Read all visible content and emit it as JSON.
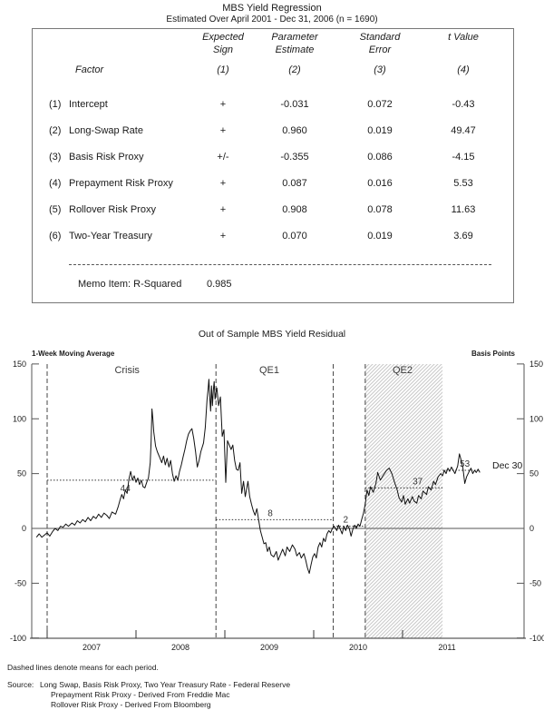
{
  "regression_table": {
    "title": "MBS Yield Regression",
    "subtitle": "Estimated Over April 2001 - Dec 31, 2006 (n = 1690)",
    "factor_header": "Factor",
    "col_headers": [
      {
        "line1": "Expected",
        "line2": "Sign",
        "num": "(1)"
      },
      {
        "line1": "Parameter",
        "line2": "Estimate",
        "num": "(2)"
      },
      {
        "line1": "Standard",
        "line2": "Error",
        "num": "(3)"
      },
      {
        "line1": "t Value",
        "line2": "",
        "num": "(4)"
      }
    ],
    "rows": [
      {
        "num": "(1)",
        "factor": "Intercept",
        "sign": "+",
        "estimate": "-0.031",
        "std_error": "0.072",
        "t_value": "-0.43"
      },
      {
        "num": "(2)",
        "factor": "Long-Swap Rate",
        "sign": "+",
        "estimate": "0.960",
        "std_error": "0.019",
        "t_value": "49.47"
      },
      {
        "num": "(3)",
        "factor": "Basis Risk Proxy",
        "sign": "+/-",
        "estimate": "-0.355",
        "std_error": "0.086",
        "t_value": "-4.15"
      },
      {
        "num": "(4)",
        "factor": "Prepayment Risk Proxy",
        "sign": "+",
        "estimate": "0.087",
        "std_error": "0.016",
        "t_value": "5.53"
      },
      {
        "num": "(5)",
        "factor": "Rollover Risk Proxy",
        "sign": "+",
        "estimate": "0.908",
        "std_error": "0.078",
        "t_value": "11.63"
      },
      {
        "num": "(6)",
        "factor": "Two-Year Treasury",
        "sign": "+",
        "estimate": "0.070",
        "std_error": "0.019",
        "t_value": "3.69"
      }
    ],
    "memo_label": "Memo Item: R-Squared",
    "memo_value": "0.985"
  },
  "chart_data": {
    "type": "line",
    "title": "Out of Sample MBS Yield Residual",
    "left_axis_label": "1-Week Moving Average",
    "right_axis_label": "Basis Points",
    "ylabel_units": "basis points",
    "ylim": [
      -100,
      150
    ],
    "y_ticks": [
      150,
      100,
      50,
      0,
      -50,
      -100
    ],
    "x_tick_years": [
      2007,
      2008,
      2009,
      2010,
      2011
    ],
    "x_tick_labels": [
      "2007",
      "2008",
      "2009",
      "2010",
      "2011"
    ],
    "xlim_years": [
      2006.83,
      2012.37
    ],
    "grid": false,
    "zero_line": 0,
    "dividers": [
      2007.0,
      2008.9,
      2010.22,
      2010.58
    ],
    "periods": [
      {
        "name": "crisis",
        "label": "Crisis",
        "label_year": 2007.9,
        "start": 2007.0,
        "end": 2008.9,
        "mean": 44,
        "mean_label": "44",
        "mean_label_year": 2007.88,
        "mean_label_pos": "below",
        "hatched": false
      },
      {
        "name": "qe1",
        "label": "QE1",
        "label_year": 2009.5,
        "start": 2008.9,
        "end": 2010.22,
        "mean": 8,
        "mean_label": "8",
        "mean_label_year": 2009.51,
        "mean_label_pos": "above",
        "hatched": false
      },
      {
        "name": "inter-qe",
        "label": "",
        "label_year": null,
        "start": 2010.22,
        "end": 2010.58,
        "mean": 2,
        "mean_label": "2",
        "mean_label_year": 2010.36,
        "mean_label_pos": "above",
        "hatched": false
      },
      {
        "name": "qe2",
        "label": "QE2",
        "label_year": 2011.0,
        "start": 2010.58,
        "end": 2011.45,
        "mean": 37,
        "mean_label": "37",
        "mean_label_year": 2011.17,
        "mean_label_pos": "above",
        "hatched": true
      },
      {
        "name": "post-qe2",
        "label": "",
        "label_year": null,
        "start": 2011.45,
        "end": 2011.87,
        "mean": 53,
        "mean_label": "53",
        "mean_label_year": 2011.7,
        "mean_label_pos": "above",
        "hatched": false
      }
    ],
    "end_label": {
      "text": "Dec 30",
      "year": 2012.0,
      "value": 53
    },
    "series": [
      {
        "name": "MBS yield residual (1-week moving average)",
        "points": [
          [
            2006.88,
            -8
          ],
          [
            2006.91,
            -5
          ],
          [
            2006.94,
            -8
          ],
          [
            2006.97,
            -6
          ],
          [
            2007.0,
            -4
          ],
          [
            2007.03,
            -7
          ],
          [
            2007.06,
            -3
          ],
          [
            2007.09,
            0
          ],
          [
            2007.12,
            -2
          ],
          [
            2007.15,
            2
          ],
          [
            2007.18,
            1
          ],
          [
            2007.21,
            4
          ],
          [
            2007.24,
            2
          ],
          [
            2007.28,
            5
          ],
          [
            2007.31,
            3
          ],
          [
            2007.34,
            7
          ],
          [
            2007.37,
            5
          ],
          [
            2007.4,
            8
          ],
          [
            2007.43,
            6
          ],
          [
            2007.46,
            10
          ],
          [
            2007.49,
            7
          ],
          [
            2007.52,
            11
          ],
          [
            2007.55,
            9
          ],
          [
            2007.58,
            13
          ],
          [
            2007.61,
            10
          ],
          [
            2007.64,
            14
          ],
          [
            2007.67,
            12
          ],
          [
            2007.7,
            9
          ],
          [
            2007.73,
            15
          ],
          [
            2007.77,
            13
          ],
          [
            2007.8,
            20
          ],
          [
            2007.82,
            26
          ],
          [
            2007.84,
            31
          ],
          [
            2007.86,
            27
          ],
          [
            2007.88,
            35
          ],
          [
            2007.9,
            32
          ],
          [
            2007.92,
            45
          ],
          [
            2007.94,
            52
          ],
          [
            2007.96,
            44
          ],
          [
            2007.98,
            48
          ],
          [
            2008.0,
            42
          ],
          [
            2008.02,
            46
          ],
          [
            2008.04,
            40
          ],
          [
            2008.06,
            44
          ],
          [
            2008.08,
            38
          ],
          [
            2008.1,
            37
          ],
          [
            2008.12,
            42
          ],
          [
            2008.14,
            46
          ],
          [
            2008.16,
            60
          ],
          [
            2008.17,
            80
          ],
          [
            2008.18,
            109
          ],
          [
            2008.19,
            100
          ],
          [
            2008.2,
            88
          ],
          [
            2008.22,
            75
          ],
          [
            2008.24,
            70
          ],
          [
            2008.27,
            64
          ],
          [
            2008.29,
            60
          ],
          [
            2008.31,
            66
          ],
          [
            2008.33,
            58
          ],
          [
            2008.35,
            64
          ],
          [
            2008.37,
            56
          ],
          [
            2008.39,
            62
          ],
          [
            2008.41,
            50
          ],
          [
            2008.43,
            43
          ],
          [
            2008.45,
            48
          ],
          [
            2008.47,
            44
          ],
          [
            2008.49,
            52
          ],
          [
            2008.51,
            58
          ],
          [
            2008.53,
            65
          ],
          [
            2008.55,
            72
          ],
          [
            2008.57,
            80
          ],
          [
            2008.59,
            86
          ],
          [
            2008.61,
            89
          ],
          [
            2008.63,
            91
          ],
          [
            2008.65,
            82
          ],
          [
            2008.67,
            70
          ],
          [
            2008.69,
            56
          ],
          [
            2008.71,
            62
          ],
          [
            2008.73,
            70
          ],
          [
            2008.76,
            78
          ],
          [
            2008.78,
            92
          ],
          [
            2008.79,
            105
          ],
          [
            2008.8,
            118
          ],
          [
            2008.81,
            126
          ],
          [
            2008.82,
            136
          ],
          [
            2008.83,
            120
          ],
          [
            2008.84,
            107
          ],
          [
            2008.85,
            130
          ],
          [
            2008.86,
            112
          ],
          [
            2008.87,
            126
          ],
          [
            2008.88,
            134
          ],
          [
            2008.89,
            118
          ],
          [
            2008.9,
            124
          ],
          [
            2008.91,
            128
          ],
          [
            2008.93,
            112
          ],
          [
            2008.95,
            120
          ],
          [
            2008.97,
            84
          ],
          [
            2008.99,
            90
          ],
          [
            2009.01,
            42
          ],
          [
            2009.03,
            80
          ],
          [
            2009.05,
            76
          ],
          [
            2009.07,
            72
          ],
          [
            2009.09,
            76
          ],
          [
            2009.11,
            62
          ],
          [
            2009.13,
            54
          ],
          [
            2009.15,
            53
          ],
          [
            2009.17,
            60
          ],
          [
            2009.19,
            32
          ],
          [
            2009.21,
            43
          ],
          [
            2009.23,
            29
          ],
          [
            2009.26,
            43
          ],
          [
            2009.28,
            29
          ],
          [
            2009.3,
            22
          ],
          [
            2009.32,
            16
          ],
          [
            2009.34,
            12
          ],
          [
            2009.36,
            18
          ],
          [
            2009.38,
            8
          ],
          [
            2009.4,
            -2
          ],
          [
            2009.42,
            -8
          ],
          [
            2009.44,
            -14
          ],
          [
            2009.46,
            -13
          ],
          [
            2009.48,
            -21
          ],
          [
            2009.5,
            -17
          ],
          [
            2009.52,
            -24
          ],
          [
            2009.55,
            -26
          ],
          [
            2009.58,
            -21
          ],
          [
            2009.6,
            -29
          ],
          [
            2009.63,
            -23
          ],
          [
            2009.65,
            -19
          ],
          [
            2009.68,
            -25
          ],
          [
            2009.7,
            -17
          ],
          [
            2009.73,
            -21
          ],
          [
            2009.76,
            -15
          ],
          [
            2009.79,
            -19
          ],
          [
            2009.81,
            -25
          ],
          [
            2009.84,
            -22
          ],
          [
            2009.86,
            -27
          ],
          [
            2009.89,
            -23
          ],
          [
            2009.91,
            -29
          ],
          [
            2009.93,
            -36
          ],
          [
            2009.95,
            -41
          ],
          [
            2009.97,
            -33
          ],
          [
            2009.99,
            -26
          ],
          [
            2010.01,
            -23
          ],
          [
            2010.03,
            -27
          ],
          [
            2010.05,
            -17
          ],
          [
            2010.07,
            -13
          ],
          [
            2010.09,
            -17
          ],
          [
            2010.11,
            -9
          ],
          [
            2010.13,
            -12
          ],
          [
            2010.15,
            -5
          ],
          [
            2010.17,
            -2
          ],
          [
            2010.19,
            -4
          ],
          [
            2010.21,
            0
          ],
          [
            2010.23,
            2
          ],
          [
            2010.26,
            -2
          ],
          [
            2010.28,
            3
          ],
          [
            2010.3,
            -1
          ],
          [
            2010.32,
            -5
          ],
          [
            2010.34,
            2
          ],
          [
            2010.36,
            -2
          ],
          [
            2010.38,
            3
          ],
          [
            2010.4,
            0
          ],
          [
            2010.42,
            -7
          ],
          [
            2010.44,
            -1
          ],
          [
            2010.46,
            3
          ],
          [
            2010.48,
            0
          ],
          [
            2010.5,
            4
          ],
          [
            2010.52,
            2
          ],
          [
            2010.54,
            8
          ],
          [
            2010.56,
            14
          ],
          [
            2010.58,
            22
          ],
          [
            2010.6,
            35
          ],
          [
            2010.62,
            30
          ],
          [
            2010.64,
            38
          ],
          [
            2010.67,
            33
          ],
          [
            2010.7,
            41
          ],
          [
            2010.72,
            51
          ],
          [
            2010.75,
            44
          ],
          [
            2010.78,
            48
          ],
          [
            2010.82,
            53
          ],
          [
            2010.85,
            55
          ],
          [
            2010.88,
            50
          ],
          [
            2010.91,
            42
          ],
          [
            2010.94,
            35
          ],
          [
            2010.96,
            28
          ],
          [
            2010.99,
            24
          ],
          [
            2011.01,
            30
          ],
          [
            2011.03,
            22
          ],
          [
            2011.06,
            27
          ],
          [
            2011.08,
            23
          ],
          [
            2011.11,
            29
          ],
          [
            2011.13,
            25
          ],
          [
            2011.16,
            23
          ],
          [
            2011.18,
            30
          ],
          [
            2011.21,
            27
          ],
          [
            2011.23,
            34
          ],
          [
            2011.27,
            31
          ],
          [
            2011.29,
            38
          ],
          [
            2011.32,
            35
          ],
          [
            2011.35,
            43
          ],
          [
            2011.37,
            40
          ],
          [
            2011.4,
            47
          ],
          [
            2011.43,
            50
          ],
          [
            2011.45,
            48
          ],
          [
            2011.47,
            53
          ],
          [
            2011.49,
            50
          ],
          [
            2011.51,
            55
          ],
          [
            2011.53,
            52
          ],
          [
            2011.55,
            56
          ],
          [
            2011.57,
            53
          ],
          [
            2011.59,
            50
          ],
          [
            2011.62,
            57
          ],
          [
            2011.64,
            68
          ],
          [
            2011.66,
            62
          ],
          [
            2011.68,
            55
          ],
          [
            2011.7,
            41
          ],
          [
            2011.72,
            47
          ],
          [
            2011.75,
            52
          ],
          [
            2011.77,
            55
          ],
          [
            2011.79,
            50
          ],
          [
            2011.81,
            53
          ],
          [
            2011.83,
            51
          ],
          [
            2011.85,
            54
          ],
          [
            2011.87,
            51
          ]
        ]
      }
    ],
    "note": "Dashed lines denote means for each period.",
    "source_label": "Source:",
    "source_lines": [
      "Long Swap, Basis Risk Proxy, Two Year Treasury Rate - Federal Reserve",
      "Prepayment Risk Proxy - Derived From Freddie Mac",
      "Rollover Risk Proxy - Derived From Bloomberg"
    ],
    "colors": {
      "line": "#111111",
      "axis": "#555555",
      "mean_line": "#333333",
      "hatch": "#c8c8c8",
      "period_label": "#3a3a3a"
    }
  }
}
